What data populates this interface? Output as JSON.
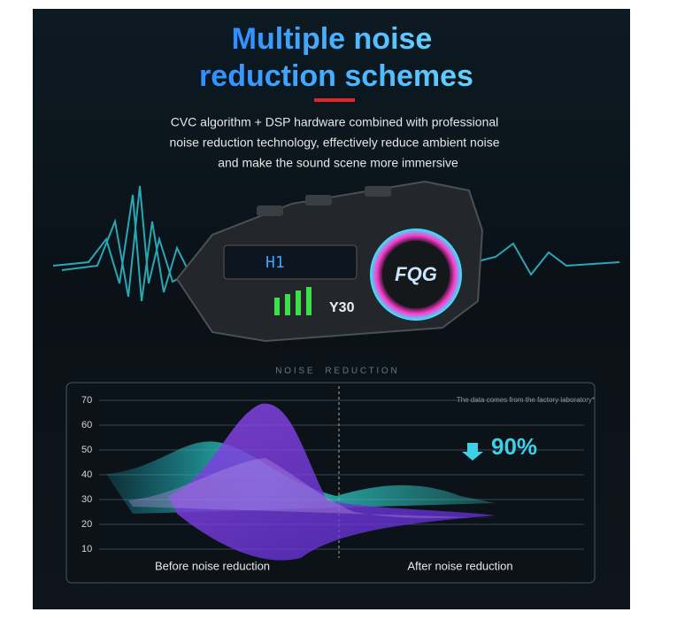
{
  "header": {
    "title_lines": [
      "Multiple noise",
      "reduction schemes"
    ],
    "subtitle_lines": [
      "CVC algorithm + DSP hardware combined with professional",
      "noise reduction technology, effectively reduce ambient noise",
      "and make the sound scene more immersive"
    ]
  },
  "device": {
    "display": "H1",
    "logo": "FQG",
    "model": "Y30"
  },
  "section_label": "N O I S E     R E D U C T I O N",
  "chart": {
    "yticks": [
      70,
      60,
      50,
      40,
      30,
      20,
      10
    ],
    "ylim": [
      5,
      72
    ],
    "note": "The data comes from the factory laboratory*",
    "reduction": "90%",
    "labels": [
      "Before noise reduction",
      "After noise reduction"
    ]
  }
}
